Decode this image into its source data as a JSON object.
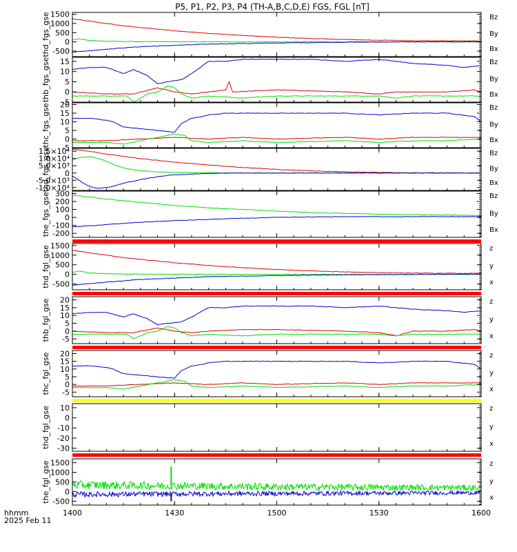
{
  "title": "P5, P1, P2, P3, P4 (TH-A,B,C,D,E) FGS, FGL [nT]",
  "colors": {
    "x": "#0000cc",
    "y": "#00dd00",
    "z": "#dd0000",
    "bar_red": "#ff0000",
    "bar_yellow": "#ffff00"
  },
  "time_axis": {
    "label_line1": "hhmm",
    "label_line2": "2025 Feb 11",
    "ticks": [
      "1400",
      "1430",
      "1500",
      "1530",
      "1600"
    ],
    "tick_values": [
      0,
      30,
      60,
      90,
      120
    ],
    "range": [
      0,
      120
    ]
  },
  "chart_data": [
    {
      "type": "line",
      "ylabel": "thd_fgs_gse",
      "ylim": [
        -800,
        1600
      ],
      "yticks": [
        "1500",
        "1000",
        "500",
        "0",
        "-500"
      ],
      "ytick_values": [
        1500,
        1000,
        500,
        0,
        -500
      ],
      "legend": [
        "Bz",
        "By",
        "Bx"
      ],
      "bar_below": null,
      "series": [
        {
          "name": "Bz",
          "color": "z",
          "x": [
            0,
            15,
            30,
            45,
            60,
            75,
            90,
            105,
            120
          ],
          "y": [
            1250,
            870,
            600,
            400,
            250,
            150,
            90,
            60,
            50
          ]
        },
        {
          "name": "By",
          "color": "y",
          "x": [
            0,
            2,
            5,
            10,
            20,
            40,
            60,
            80,
            100,
            120
          ],
          "y": [
            100,
            170,
            80,
            30,
            10,
            0,
            0,
            0,
            0,
            0
          ]
        },
        {
          "name": "Bx",
          "color": "x",
          "x": [
            0,
            10,
            20,
            40,
            60,
            80,
            100,
            120
          ],
          "y": [
            -560,
            -400,
            -260,
            -120,
            -60,
            -20,
            0,
            10
          ]
        }
      ]
    },
    {
      "type": "line",
      "ylabel": "thb_fgs_gse",
      "ylim": [
        -5,
        17
      ],
      "yticks": [
        "15",
        "10",
        "5",
        "0",
        "-5"
      ],
      "ytick_values": [
        15,
        10,
        5,
        0,
        -5
      ],
      "legend": [
        "Bz",
        "By",
        "Bx"
      ],
      "bar_below": null,
      "series": [
        {
          "name": "Bz",
          "color": "z",
          "x": [
            0,
            10,
            18,
            25,
            30,
            35,
            40,
            45,
            46,
            47,
            60,
            80,
            90,
            95,
            100,
            110,
            118,
            120
          ],
          "y": [
            0,
            -1,
            -1,
            2,
            0,
            -1,
            0,
            1,
            5,
            0,
            1,
            0,
            -1,
            0,
            0,
            0,
            1,
            0
          ]
        },
        {
          "name": "By",
          "color": "y",
          "x": [
            0,
            10,
            16,
            18,
            22,
            25,
            28,
            30,
            32,
            35,
            40,
            50,
            60,
            80,
            90,
            95,
            100,
            110,
            120
          ],
          "y": [
            -2,
            -2,
            -2,
            -5,
            -1,
            0,
            3,
            2,
            -1,
            -3,
            -2,
            -3,
            -2,
            -2,
            -2,
            -3,
            -2,
            -2,
            -2
          ]
        },
        {
          "name": "Bx",
          "color": "x",
          "x": [
            0,
            5,
            10,
            15,
            18,
            22,
            25,
            28,
            32,
            35,
            40,
            45,
            50,
            60,
            70,
            80,
            90,
            100,
            110,
            115,
            120
          ],
          "y": [
            11,
            12,
            12,
            9,
            11,
            8,
            4,
            5,
            6,
            9,
            15,
            15,
            16,
            16,
            16,
            15,
            16,
            14,
            13,
            12,
            13
          ]
        }
      ]
    },
    {
      "type": "line",
      "ylabel": "thc_fgs_gse",
      "ylim": [
        -5,
        21
      ],
      "yticks": [
        "20",
        "15",
        "10",
        "5",
        "0",
        "-5"
      ],
      "ytick_values": [
        20,
        15,
        10,
        5,
        0,
        -5
      ],
      "legend": [
        "Bz",
        "By",
        "Bx"
      ],
      "bar_below": null,
      "series": [
        {
          "name": "Bz",
          "color": "z",
          "x": [
            0,
            10,
            20,
            30,
            40,
            50,
            60,
            80,
            90,
            100,
            110,
            120
          ],
          "y": [
            -1,
            -1,
            0,
            1,
            0,
            1,
            0,
            1,
            0,
            1,
            1,
            1
          ]
        },
        {
          "name": "By",
          "color": "y",
          "x": [
            0,
            10,
            15,
            20,
            25,
            30,
            33,
            35,
            40,
            50,
            60,
            80,
            90,
            100,
            110,
            120
          ],
          "y": [
            -2,
            -2,
            -3,
            -1,
            1,
            3,
            2,
            -1,
            -2,
            -1,
            -2,
            -1,
            -2,
            -1,
            -1,
            0
          ]
        },
        {
          "name": "Bx",
          "color": "x",
          "x": [
            0,
            5,
            10,
            12,
            15,
            20,
            25,
            30,
            32,
            35,
            38,
            40,
            45,
            50,
            60,
            70,
            80,
            90,
            100,
            110,
            118,
            120
          ],
          "y": [
            12,
            12,
            11,
            10,
            7,
            6,
            5,
            4,
            9,
            12,
            13,
            14,
            15,
            15,
            15,
            15,
            15,
            14,
            15,
            15,
            13,
            10
          ]
        }
      ]
    },
    {
      "type": "line",
      "ylabel": "thd_fgs_gse",
      "ylim": [
        -12000,
        17000
      ],
      "yticks": [
        "1.5×10⁴",
        "1.0×10⁴",
        "5.0×10³",
        "0",
        "-5.0×10³",
        "-1.0×10⁴"
      ],
      "ytick_values": [
        15000,
        10000,
        5000,
        0,
        -5000,
        -10000
      ],
      "legend": [
        "Bz",
        "By",
        "Bx"
      ],
      "bar_below": null,
      "series": [
        {
          "name": "Bz",
          "color": "z",
          "x": [
            0,
            5,
            10,
            20,
            30,
            40,
            50,
            60,
            70,
            80,
            100,
            120
          ],
          "y": [
            16500,
            15000,
            13000,
            10000,
            7500,
            5500,
            3800,
            2500,
            1500,
            800,
            200,
            0
          ]
        },
        {
          "name": "By",
          "color": "y",
          "x": [
            0,
            3,
            6,
            9,
            12,
            15,
            20,
            25,
            30,
            40,
            50,
            60,
            80,
            120
          ],
          "y": [
            9000,
            11000,
            11000,
            9000,
            6000,
            3500,
            1500,
            800,
            400,
            150,
            50,
            0,
            0,
            0
          ]
        },
        {
          "name": "Bx",
          "color": "x",
          "x": [
            0,
            2,
            4,
            6,
            8,
            10,
            12,
            15,
            20,
            25,
            30,
            40,
            50,
            60,
            80,
            120
          ],
          "y": [
            -2000,
            -5000,
            -8000,
            -10000,
            -10500,
            -10000,
            -9000,
            -7000,
            -4500,
            -2500,
            -1200,
            -300,
            0,
            0,
            0,
            0
          ]
        }
      ]
    },
    {
      "type": "line",
      "ylabel": "the_fgs_gse",
      "ylim": [
        -250,
        330
      ],
      "yticks": [
        "300",
        "200",
        "100",
        "0",
        "-100",
        "-200"
      ],
      "ytick_values": [
        300,
        200,
        100,
        0,
        -100,
        -200
      ],
      "legend": [
        "Bz",
        "By",
        "Bx"
      ],
      "bar_below": "bar_red",
      "series": [
        {
          "name": "By",
          "color": "y",
          "x": [
            0,
            10,
            20,
            30,
            40,
            50,
            60,
            70,
            80,
            90,
            100,
            110,
            120
          ],
          "y": [
            280,
            230,
            190,
            150,
            120,
            100,
            80,
            60,
            50,
            40,
            35,
            30,
            25
          ]
        },
        {
          "name": "Bx",
          "color": "x",
          "x": [
            0,
            10,
            20,
            30,
            40,
            50,
            60,
            70,
            80,
            90,
            100,
            110,
            120
          ],
          "y": [
            -120,
            -90,
            -60,
            -40,
            -25,
            -10,
            0,
            5,
            10,
            10,
            10,
            10,
            10
          ]
        }
      ]
    },
    {
      "type": "line",
      "ylabel": "thd_fgl_gse",
      "ylim": [
        -800,
        1600
      ],
      "yticks": [
        "1500",
        "1000",
        "500",
        "0",
        "-500"
      ],
      "ytick_values": [
        1500,
        1000,
        500,
        0,
        -500
      ],
      "legend": [
        "z",
        "y",
        "x"
      ],
      "bar_below": "bar_red",
      "series": [
        {
          "name": "z",
          "color": "z",
          "x": [
            0,
            15,
            30,
            45,
            60,
            75,
            90,
            105,
            120
          ],
          "y": [
            1250,
            870,
            600,
            400,
            250,
            150,
            90,
            60,
            50
          ]
        },
        {
          "name": "y",
          "color": "y",
          "x": [
            0,
            2,
            5,
            10,
            20,
            40,
            60,
            80,
            100,
            120
          ],
          "y": [
            100,
            170,
            80,
            30,
            10,
            0,
            0,
            0,
            0,
            0
          ]
        },
        {
          "name": "x",
          "color": "x",
          "x": [
            0,
            10,
            20,
            40,
            60,
            80,
            100,
            120
          ],
          "y": [
            -560,
            -400,
            -260,
            -120,
            -60,
            -20,
            0,
            10
          ]
        }
      ]
    },
    {
      "type": "line",
      "ylabel": "thb_fgl_gse",
      "ylim": [
        -8,
        22
      ],
      "yticks": [
        "20",
        "15",
        "10",
        "5",
        "0",
        "-5"
      ],
      "ytick_values": [
        20,
        15,
        10,
        5,
        0,
        -5
      ],
      "legend": [
        "z",
        "y",
        "x"
      ],
      "bar_below": "bar_red",
      "series": [
        {
          "name": "z",
          "color": "z",
          "x": [
            0,
            10,
            18,
            25,
            30,
            35,
            40,
            50,
            60,
            80,
            90,
            95,
            100,
            110,
            118,
            120
          ],
          "y": [
            0,
            -1,
            -1,
            2,
            0,
            -1,
            0,
            1,
            1,
            0,
            -1,
            -3,
            0,
            0,
            1,
            0
          ]
        },
        {
          "name": "y",
          "color": "y",
          "x": [
            0,
            10,
            16,
            18,
            22,
            25,
            28,
            30,
            32,
            35,
            40,
            50,
            60,
            80,
            90,
            95,
            100,
            110,
            120
          ],
          "y": [
            -2,
            -2,
            -2,
            -5,
            -1,
            0,
            3,
            2,
            -1,
            -3,
            -2,
            -3,
            -2,
            -2,
            -2,
            -3,
            -2,
            -2,
            -2
          ]
        },
        {
          "name": "x",
          "color": "x",
          "x": [
            0,
            5,
            10,
            15,
            18,
            22,
            25,
            28,
            32,
            35,
            40,
            45,
            50,
            60,
            70,
            80,
            90,
            100,
            110,
            115,
            120
          ],
          "y": [
            11,
            12,
            12,
            9,
            11,
            8,
            4,
            5,
            6,
            9,
            15,
            15,
            16,
            16,
            16,
            15,
            16,
            14,
            13,
            12,
            13
          ]
        }
      ]
    },
    {
      "type": "line",
      "ylabel": "thc_fgl_gse",
      "ylim": [
        -8,
        22
      ],
      "yticks": [
        "20",
        "15",
        "10",
        "5",
        "0",
        "-5"
      ],
      "ytick_values": [
        20,
        15,
        10,
        5,
        0,
        -5
      ],
      "legend": [
        "z",
        "y",
        "x"
      ],
      "bar_below": "bar_yellow",
      "series": [
        {
          "name": "z",
          "color": "z",
          "x": [
            0,
            10,
            20,
            30,
            40,
            50,
            60,
            80,
            90,
            100,
            110,
            120
          ],
          "y": [
            -1,
            -1,
            0,
            1,
            0,
            1,
            0,
            1,
            0,
            1,
            1,
            1
          ]
        },
        {
          "name": "y",
          "color": "y",
          "x": [
            0,
            10,
            15,
            20,
            25,
            30,
            33,
            35,
            40,
            50,
            60,
            80,
            90,
            100,
            110,
            120
          ],
          "y": [
            -2,
            -2,
            -3,
            -1,
            1,
            3,
            2,
            -1,
            -2,
            -1,
            -2,
            -1,
            -2,
            -1,
            -1,
            0
          ]
        },
        {
          "name": "x",
          "color": "x",
          "x": [
            0,
            5,
            10,
            12,
            15,
            20,
            25,
            30,
            32,
            35,
            38,
            40,
            45,
            50,
            60,
            70,
            80,
            90,
            100,
            110,
            118,
            120
          ],
          "y": [
            12,
            12,
            11,
            10,
            7,
            6,
            5,
            4,
            9,
            12,
            13,
            14,
            15,
            15,
            15,
            15,
            15,
            14,
            15,
            15,
            13,
            10
          ]
        }
      ]
    },
    {
      "type": "line",
      "ylabel": "thd_fgl_gse",
      "ylim": [
        -33,
        14
      ],
      "yticks": [
        "10",
        "0",
        "-10",
        "-20",
        "-30"
      ],
      "ytick_values": [
        10,
        0,
        -10,
        -20,
        -30
      ],
      "legend": [
        "z",
        "y",
        "x"
      ],
      "bar_below": "bar_red",
      "series": []
    },
    {
      "type": "line",
      "ylabel": "the_fgl_gse",
      "ylim": [
        -700,
        1700
      ],
      "yticks": [
        "1500",
        "1000",
        "500",
        "0",
        "-500"
      ],
      "ytick_values": [
        1500,
        1000,
        500,
        0,
        -500
      ],
      "legend": [
        "z",
        "y",
        "x"
      ],
      "bar_below": null,
      "noisy": true,
      "series": [
        {
          "name": "y",
          "color": "y",
          "x": [
            0,
            30,
            60,
            90,
            120
          ],
          "y": [
            350,
            300,
            250,
            220,
            200
          ],
          "noise": 220,
          "spike_x": 29,
          "spike_max": 1300
        },
        {
          "name": "x",
          "color": "x",
          "x": [
            0,
            30,
            60,
            90,
            120
          ],
          "y": [
            -150,
            -120,
            -100,
            -80,
            -60
          ],
          "noise": 140,
          "spike_x": 29,
          "spike_max": -500
        }
      ]
    }
  ]
}
